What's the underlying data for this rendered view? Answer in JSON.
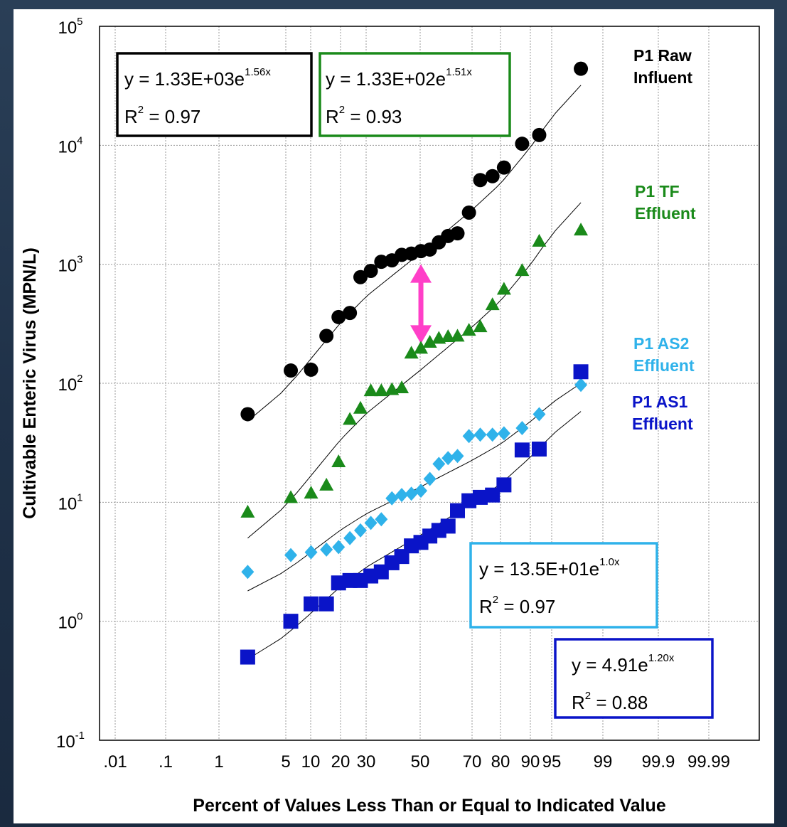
{
  "chart_data": {
    "type": "scatter",
    "xlabel": "Percent of Values Less Than or Equal to Indicated Value",
    "ylabel": "Cultivable Enteric Virus (MPN/L)",
    "x_scale": "probability",
    "y_scale": "log",
    "ylim": [
      0.1,
      100000
    ],
    "x_ticks": [
      {
        "p": 0.01,
        "label": ".01"
      },
      {
        "p": 0.1,
        "label": ".1"
      },
      {
        "p": 1,
        "label": "1"
      },
      {
        "p": 5,
        "label": "5"
      },
      {
        "p": 10,
        "label": "10"
      },
      {
        "p": 20,
        "label": "20"
      },
      {
        "p": 30,
        "label": "30"
      },
      {
        "p": 50,
        "label": "50"
      },
      {
        "p": 70,
        "label": "70"
      },
      {
        "p": 80,
        "label": "80"
      },
      {
        "p": 90,
        "label": "90"
      },
      {
        "p": 95,
        "label": "95"
      },
      {
        "p": 99,
        "label": "99"
      },
      {
        "p": 99.9,
        "label": "99.9"
      },
      {
        "p": 99.99,
        "label": "99.99"
      }
    ],
    "y_ticks": [
      {
        "v": 0.1,
        "base": "10",
        "exp": "-1"
      },
      {
        "v": 1,
        "base": "10",
        "exp": "0"
      },
      {
        "v": 10,
        "base": "10",
        "exp": "1"
      },
      {
        "v": 100,
        "base": "10",
        "exp": "2"
      },
      {
        "v": 1000,
        "base": "10",
        "exp": "3"
      },
      {
        "v": 10000,
        "base": "10",
        "exp": "4"
      },
      {
        "v": 100000,
        "base": "10",
        "exp": "5"
      }
    ],
    "grid": true,
    "series": [
      {
        "name": "P1 Raw Influent",
        "label_lines": [
          "P1 Raw",
          "Influent"
        ],
        "marker": "circle",
        "color": "#000000",
        "trend": {
          "x": [
            2.1,
            97.9
          ],
          "y": [
            48,
            32000
          ]
        },
        "points": [
          {
            "x": 2.1,
            "y": 55
          },
          {
            "x": 5.8,
            "y": 128
          },
          {
            "x": 10.1,
            "y": 130
          },
          {
            "x": 14.7,
            "y": 250
          },
          {
            "x": 19.2,
            "y": 360
          },
          {
            "x": 23.4,
            "y": 390
          },
          {
            "x": 27.6,
            "y": 780
          },
          {
            "x": 31.6,
            "y": 880
          },
          {
            "x": 35.3,
            "y": 1050
          },
          {
            "x": 39.2,
            "y": 1080
          },
          {
            "x": 42.9,
            "y": 1200
          },
          {
            "x": 46.6,
            "y": 1230
          },
          {
            "x": 50.3,
            "y": 1290
          },
          {
            "x": 53.9,
            "y": 1330
          },
          {
            "x": 57.5,
            "y": 1530
          },
          {
            "x": 61.1,
            "y": 1730
          },
          {
            "x": 64.7,
            "y": 1820
          },
          {
            "x": 68.9,
            "y": 2720
          },
          {
            "x": 73.1,
            "y": 5100
          },
          {
            "x": 77.4,
            "y": 5500
          },
          {
            "x": 81.4,
            "y": 6500
          },
          {
            "x": 87.7,
            "y": 10300
          },
          {
            "x": 92.4,
            "y": 12200
          },
          {
            "x": 97.9,
            "y": 44000
          }
        ]
      },
      {
        "name": "P1 TF Effluent",
        "label_lines": [
          "P1 TF",
          "Effluent"
        ],
        "marker": "triangle",
        "color": "#1a8a1a",
        "trend": {
          "x": [
            2.1,
            97.9
          ],
          "y": [
            5,
            3300
          ]
        },
        "points": [
          {
            "x": 2.1,
            "y": 8.3
          },
          {
            "x": 5.8,
            "y": 11
          },
          {
            "x": 10.1,
            "y": 12
          },
          {
            "x": 14.7,
            "y": 14
          },
          {
            "x": 19.2,
            "y": 22
          },
          {
            "x": 23.4,
            "y": 50
          },
          {
            "x": 27.6,
            "y": 62
          },
          {
            "x": 31.6,
            "y": 87
          },
          {
            "x": 35.3,
            "y": 87
          },
          {
            "x": 39.2,
            "y": 89
          },
          {
            "x": 42.9,
            "y": 92
          },
          {
            "x": 46.6,
            "y": 180
          },
          {
            "x": 50.3,
            "y": 198
          },
          {
            "x": 53.9,
            "y": 222
          },
          {
            "x": 57.5,
            "y": 240
          },
          {
            "x": 61.1,
            "y": 248
          },
          {
            "x": 64.7,
            "y": 250
          },
          {
            "x": 68.9,
            "y": 280
          },
          {
            "x": 73.1,
            "y": 300
          },
          {
            "x": 77.4,
            "y": 460
          },
          {
            "x": 81.4,
            "y": 620
          },
          {
            "x": 87.7,
            "y": 890
          },
          {
            "x": 92.4,
            "y": 1570
          },
          {
            "x": 97.9,
            "y": 1950
          }
        ]
      },
      {
        "name": "P1 AS2 Effluent",
        "label_lines": [
          "P1 AS2",
          "Effluent"
        ],
        "marker": "diamond",
        "color": "#2fb2ea",
        "trend": {
          "x": [
            2.1,
            97.9
          ],
          "y": [
            1.8,
            100
          ]
        },
        "points": [
          {
            "x": 2.1,
            "y": 2.6
          },
          {
            "x": 5.8,
            "y": 3.6
          },
          {
            "x": 10.1,
            "y": 3.8
          },
          {
            "x": 14.7,
            "y": 4.0
          },
          {
            "x": 19.2,
            "y": 4.2
          },
          {
            "x": 23.4,
            "y": 5.0
          },
          {
            "x": 27.6,
            "y": 5.8
          },
          {
            "x": 31.6,
            "y": 6.7
          },
          {
            "x": 35.3,
            "y": 7.2
          },
          {
            "x": 39.2,
            "y": 10.8
          },
          {
            "x": 42.9,
            "y": 11.5
          },
          {
            "x": 46.6,
            "y": 11.8
          },
          {
            "x": 50.3,
            "y": 12.5
          },
          {
            "x": 53.9,
            "y": 15.7
          },
          {
            "x": 57.5,
            "y": 21
          },
          {
            "x": 61.1,
            "y": 23.5
          },
          {
            "x": 64.7,
            "y": 24.5
          },
          {
            "x": 68.9,
            "y": 36
          },
          {
            "x": 73.1,
            "y": 37
          },
          {
            "x": 77.4,
            "y": 37
          },
          {
            "x": 81.4,
            "y": 38
          },
          {
            "x": 87.7,
            "y": 42
          },
          {
            "x": 92.4,
            "y": 55
          },
          {
            "x": 97.9,
            "y": 97
          }
        ]
      },
      {
        "name": "P1 AS1 Effluent",
        "label_lines": [
          "P1 AS1",
          "Effluent"
        ],
        "marker": "square",
        "color": "#0a14c8",
        "trend": {
          "x": [
            2.1,
            97.9
          ],
          "y": [
            0.48,
            58
          ]
        },
        "points": [
          {
            "x": 2.1,
            "y": 0.5
          },
          {
            "x": 5.8,
            "y": 1.0
          },
          {
            "x": 10.1,
            "y": 1.4
          },
          {
            "x": 14.7,
            "y": 1.4
          },
          {
            "x": 19.2,
            "y": 2.1
          },
          {
            "x": 23.4,
            "y": 2.2
          },
          {
            "x": 27.6,
            "y": 2.2
          },
          {
            "x": 31.6,
            "y": 2.4
          },
          {
            "x": 35.3,
            "y": 2.6
          },
          {
            "x": 39.2,
            "y": 3.1
          },
          {
            "x": 42.9,
            "y": 3.5
          },
          {
            "x": 46.6,
            "y": 4.3
          },
          {
            "x": 50.3,
            "y": 4.6
          },
          {
            "x": 53.9,
            "y": 5.2
          },
          {
            "x": 57.5,
            "y": 5.8
          },
          {
            "x": 61.1,
            "y": 6.3
          },
          {
            "x": 64.7,
            "y": 8.5
          },
          {
            "x": 68.9,
            "y": 10.3
          },
          {
            "x": 73.1,
            "y": 11
          },
          {
            "x": 77.4,
            "y": 11.5
          },
          {
            "x": 81.4,
            "y": 14
          },
          {
            "x": 87.7,
            "y": 27.5
          },
          {
            "x": 92.4,
            "y": 28
          },
          {
            "x": 97.9,
            "y": 125
          }
        ]
      }
    ],
    "equations": [
      {
        "series": "P1 Raw Influent",
        "border": "#000000",
        "y_base": "y = 1.33E+03e",
        "y_exp": "1.56x",
        "r2": "R",
        "r2_exp": "2",
        "r2_val": " = 0.97"
      },
      {
        "series": "P1 TF Effluent",
        "border": "#1a8a1a",
        "y_base": "y = 1.33E+02e",
        "y_exp": "1.51x",
        "r2": "R",
        "r2_exp": "2",
        "r2_val": " = 0.93"
      },
      {
        "series": "P1 AS2 Effluent",
        "border": "#2fb2ea",
        "y_base": "y = 13.5E+01e",
        "y_exp": "1.0x",
        "r2": "R",
        "r2_exp": "2",
        "r2_val": " = 0.97"
      },
      {
        "series": "P1 AS1 Effluent",
        "border": "#0a14c8",
        "y_base": "y = 4.91e",
        "y_exp": "1.20x",
        "r2": "R",
        "r2_exp": "2",
        "r2_val": " = 0.88"
      }
    ],
    "annotation": {
      "type": "double-arrow",
      "color": "#ff3fc8",
      "x": 50.3,
      "y_from": 1000,
      "y_to": 215
    }
  }
}
